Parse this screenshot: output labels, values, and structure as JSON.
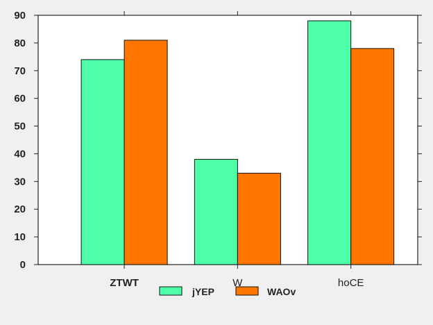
{
  "chart_data": {
    "type": "bar",
    "categories": [
      "ZTWT",
      "W",
      "hoCE"
    ],
    "category_label_bold": [
      true,
      false,
      false
    ],
    "series": [
      {
        "name": "jYEP",
        "values": [
          74,
          38,
          88
        ],
        "color": "#4dffa6"
      },
      {
        "name": "WAOv",
        "values": [
          81,
          33,
          78
        ],
        "color": "#ff7700"
      }
    ],
    "title": "",
    "xlabel": "",
    "ylabel": "",
    "ylim": [
      0,
      90
    ],
    "yticks": [
      0,
      10,
      20,
      30,
      40,
      50,
      60,
      70,
      80,
      90
    ],
    "grid": false,
    "legend": "bottom-center",
    "background": "#f0f0f0",
    "plot_background": "#ffffff"
  }
}
